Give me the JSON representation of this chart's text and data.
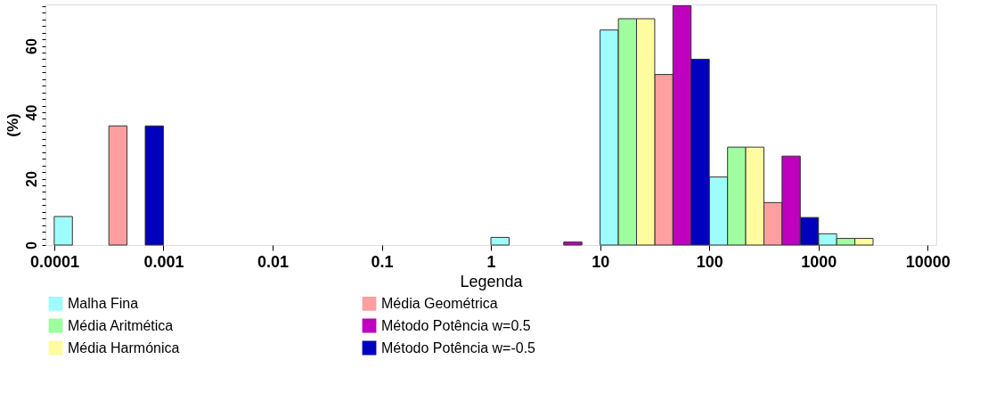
{
  "chart_data": {
    "type": "bar",
    "xlabel": "Legenda",
    "ylabel": "(%)",
    "log": "x",
    "xlim": [
      8.3e-05,
      12000
    ],
    "xticks": [
      0.0001,
      0.001,
      0.01,
      0.1,
      1,
      10,
      100,
      1000,
      10000
    ],
    "ylim": [
      0,
      72.5
    ],
    "yticks": [
      0,
      {
        "value": 2,
        "label": null
      },
      {
        "value": 4,
        "label": null
      },
      {
        "value": 6,
        "label": null
      },
      {
        "value": 8,
        "label": null
      },
      {
        "value": 10,
        "label": null
      },
      {
        "value": 12,
        "label": null
      },
      {
        "value": 14,
        "label": null
      },
      {
        "value": 16,
        "label": null
      },
      {
        "value": 18,
        "label": null
      },
      20,
      {
        "value": 22,
        "label": null
      },
      {
        "value": 24,
        "label": null
      },
      {
        "value": 26,
        "label": null
      },
      {
        "value": 28,
        "label": null
      },
      {
        "value": 30,
        "label": null
      },
      {
        "value": 32,
        "label": null
      },
      {
        "value": 34,
        "label": null
      },
      {
        "value": 36,
        "label": null
      },
      {
        "value": 38,
        "label": null
      },
      40,
      {
        "value": 42,
        "label": null
      },
      {
        "value": 44,
        "label": null
      },
      {
        "value": 46,
        "label": null
      },
      {
        "value": 48,
        "label": null
      },
      {
        "value": 50,
        "label": null
      },
      {
        "value": 52,
        "label": null
      },
      {
        "value": 54,
        "label": null
      },
      {
        "value": 56,
        "label": null
      },
      {
        "value": 58,
        "label": null
      },
      60,
      {
        "value": 62,
        "label": null
      },
      {
        "value": 64,
        "label": null
      },
      {
        "value": 66,
        "label": null
      },
      {
        "value": 68,
        "label": null
      },
      {
        "value": 70,
        "label": null
      },
      {
        "value": 72,
        "label": null
      }
    ],
    "grid": false,
    "legend": "bottom",
    "series": [
      {
        "name": "Malha Fina",
        "color": "#9ffcfc",
        "x": [
          0.000121,
          1.21,
          12.1,
          121,
          1212
        ],
        "values": [
          8.6,
          2.3,
          64.8,
          20.5,
          3.4
        ]
      },
      {
        "name": "Média Geométrica",
        "color": "#ff9f9f",
        "x": [
          0.000383,
          38.3,
          383
        ],
        "values": [
          35.9,
          51.4,
          12.8
        ]
      },
      {
        "name": "Média Aritmética",
        "color": "#9ffc9f",
        "x": [
          17.8,
          178,
          1778
        ],
        "values": [
          68.2,
          29.5,
          2.0
        ]
      },
      {
        "name": "Método Potência w=0.5",
        "color": "#bf00bf",
        "x": [
          5.62,
          56.2,
          562
        ],
        "values": [
          0.9,
          72.1,
          26.8
        ]
      },
      {
        "name": "Média Harmónica",
        "color": "#fffc9f",
        "x": [
          26.1,
          261,
          2610
        ],
        "values": [
          68.2,
          29.5,
          2.0
        ]
      },
      {
        "name": "Método Potência w=-0.5",
        "color": "#0000bf",
        "x": [
          0.000825,
          82.5,
          825
        ],
        "values": [
          35.9,
          56.0,
          8.3
        ]
      }
    ]
  }
}
